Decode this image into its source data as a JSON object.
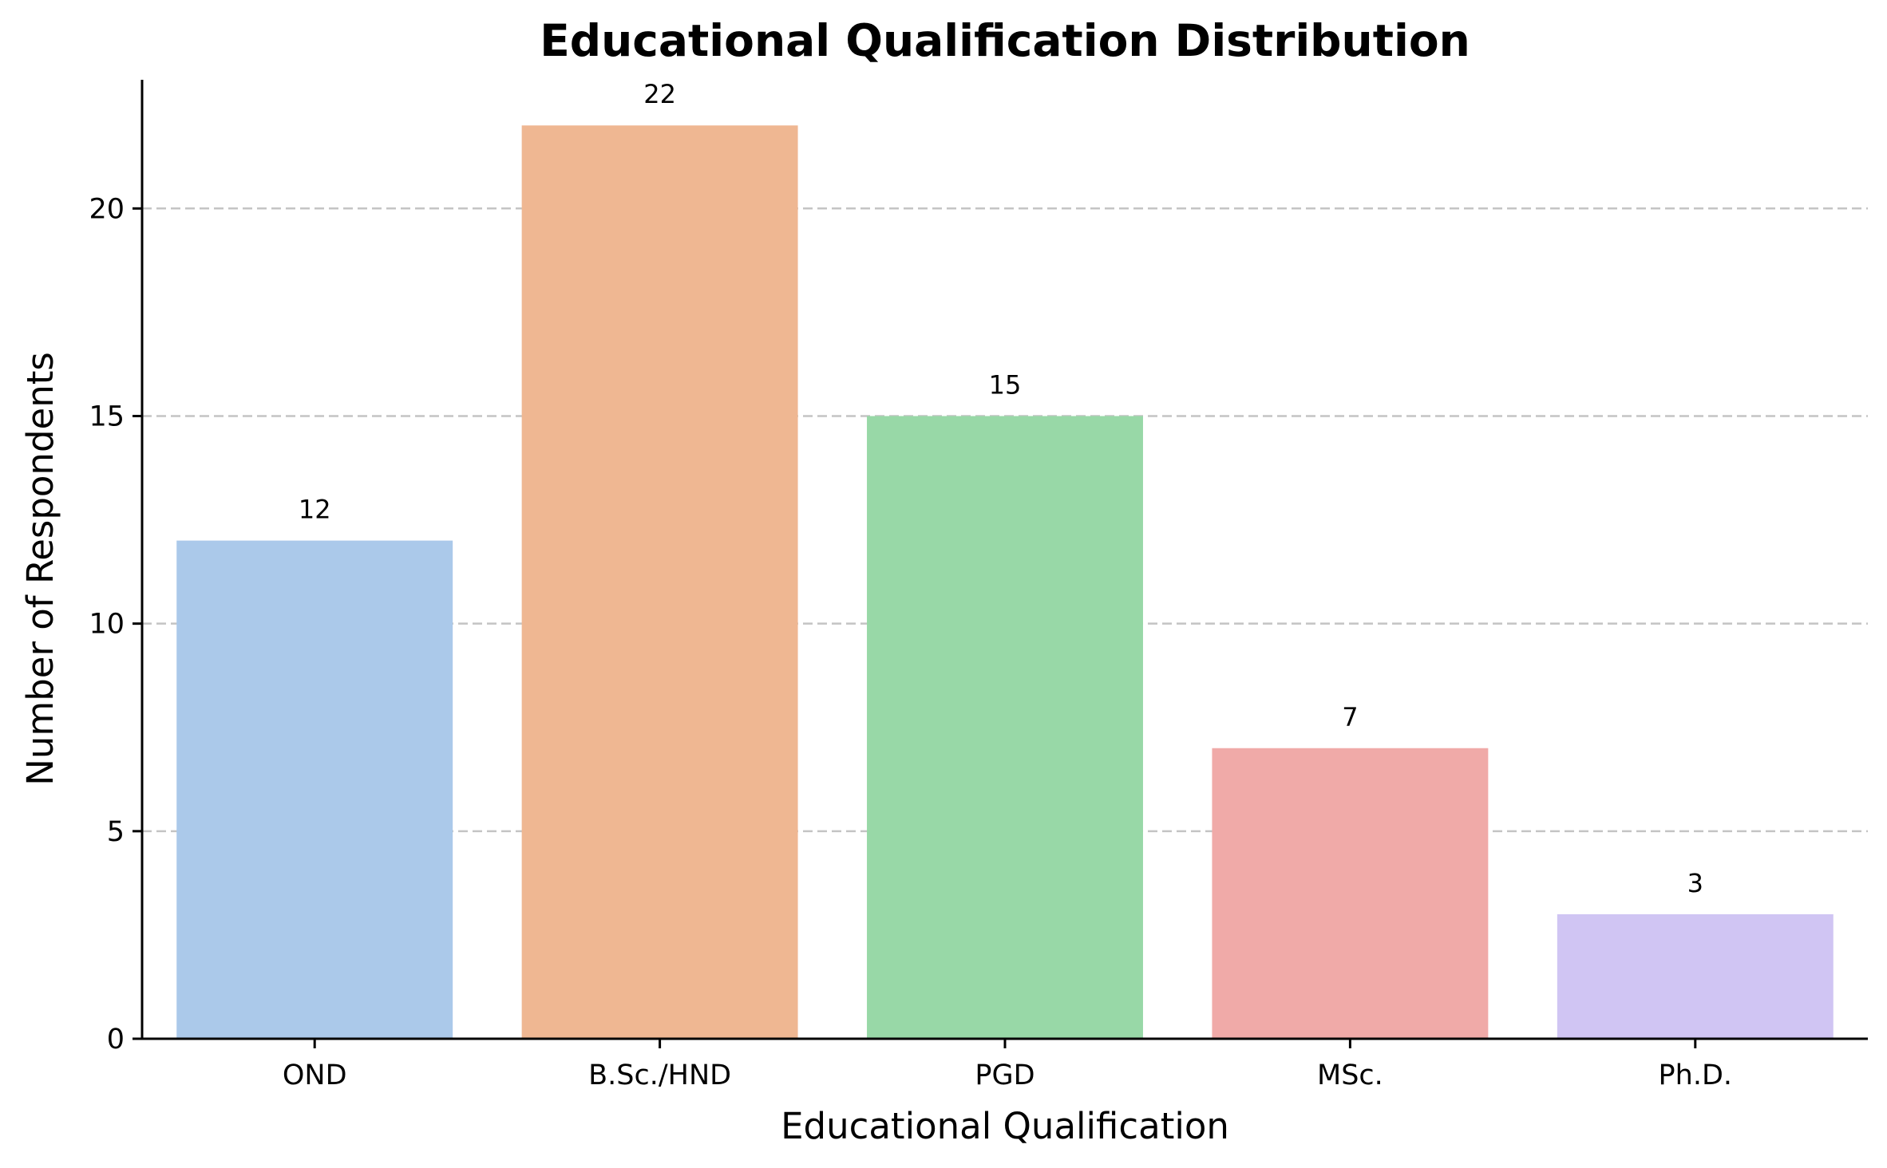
{
  "chart_data": {
    "type": "bar",
    "title": "Educational Qualification Distribution",
    "xlabel": "Educational Qualification",
    "ylabel": "Number of Respondents",
    "categories": [
      "OND",
      "B.Sc./HND",
      "PGD",
      "MSc.",
      "Ph.D."
    ],
    "values": [
      12,
      22,
      15,
      7,
      3
    ],
    "data_labels": [
      "12",
      "22",
      "15",
      "7",
      "3"
    ],
    "colors": [
      "#abc9ea",
      "#efb792",
      "#98d8a7",
      "#f0aaa8",
      "#d0c5f3"
    ],
    "ylim": [
      0,
      23.1
    ],
    "yticks": [
      0,
      5,
      10,
      15,
      20
    ],
    "ytick_labels": [
      "0",
      "5",
      "10",
      "15",
      "20"
    ],
    "grid": "y-dashed",
    "legend": "none"
  }
}
